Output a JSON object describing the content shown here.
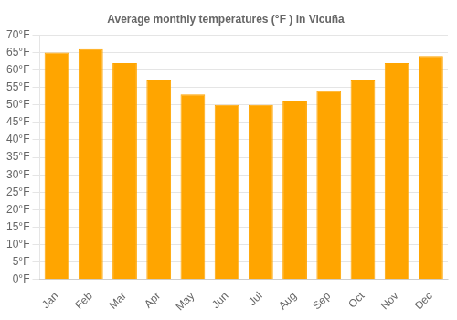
{
  "chart_data": {
    "type": "bar",
    "title": "Average monthly temperatures (°F ) in Vicuña",
    "categories": [
      "Jan",
      "Feb",
      "Mar",
      "Apr",
      "May",
      "Jun",
      "Jul",
      "Aug",
      "Sep",
      "Oct",
      "Nov",
      "Dec"
    ],
    "values": [
      65,
      66,
      62,
      57,
      53,
      50,
      50,
      51,
      54,
      57,
      62,
      64
    ],
    "color": "#FFA500",
    "ylim": [
      0,
      70
    ],
    "yticks": [
      {
        "value": 0,
        "label": "0°F"
      },
      {
        "value": 5,
        "label": "5°F"
      },
      {
        "value": 10,
        "label": "10°F"
      },
      {
        "value": 15,
        "label": "15°F"
      },
      {
        "value": 20,
        "label": "20°F"
      },
      {
        "value": 25,
        "label": "25°F"
      },
      {
        "value": 30,
        "label": "30°F"
      },
      {
        "value": 35,
        "label": "35°F"
      },
      {
        "value": 40,
        "label": "40°F"
      },
      {
        "value": 45,
        "label": "45°F"
      },
      {
        "value": 50,
        "label": "50°F"
      },
      {
        "value": 55,
        "label": "55°F"
      },
      {
        "value": 60,
        "label": "60°F"
      },
      {
        "value": 65,
        "label": "65°F"
      },
      {
        "value": 70,
        "label": "70°F"
      }
    ],
    "grid": true
  }
}
